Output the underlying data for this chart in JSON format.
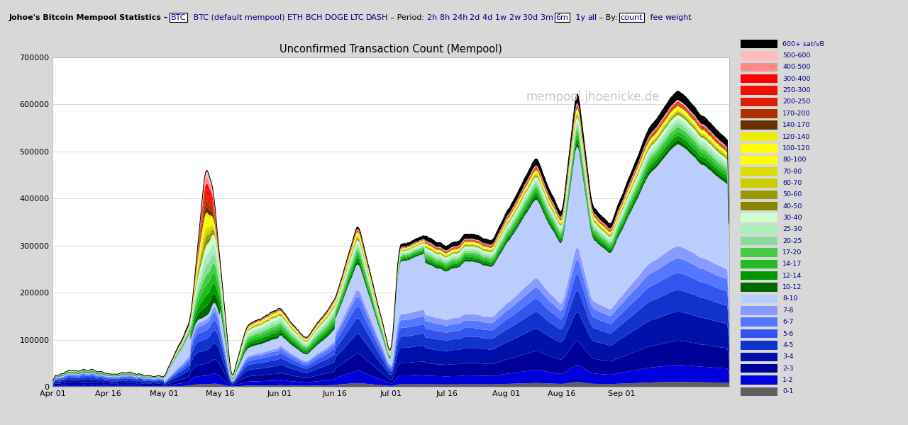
{
  "title": "Unconfirmed Transaction Count (Mempool)",
  "watermark": "mempool.jhoenicke.de",
  "ylim": [
    0,
    700000
  ],
  "yticks": [
    0,
    100000,
    200000,
    300000,
    400000,
    500000,
    600000,
    700000
  ],
  "ytick_labels": [
    "0",
    "100000",
    "200000",
    "300000",
    "400000",
    "500000",
    "600000",
    "700000"
  ],
  "x_tick_positions": [
    0,
    15,
    30,
    45,
    61,
    76,
    91,
    106,
    122,
    137,
    153
  ],
  "x_tick_labels": [
    "Apr 01",
    "Apr 16",
    "May 01",
    "May 16",
    "Jun 01",
    "Jun 16",
    "Jul 01",
    "Jul 16",
    "Aug 01",
    "Aug 16",
    "Sep 01"
  ],
  "fee_ranges": [
    "600+ sat/vB",
    "500-600",
    "400-500",
    "300-400",
    "250-300",
    "200-250",
    "170-200",
    "140-170",
    "120-140",
    "100-120",
    "80-100",
    "70-80",
    "60-70",
    "50-60",
    "40-50",
    "30-40",
    "25-30",
    "20-25",
    "17-20",
    "14-17",
    "12-14",
    "10-12",
    "8-10",
    "7-8",
    "6-7",
    "5-6",
    "4-5",
    "3-4",
    "2-3",
    "1-2",
    "0-1"
  ],
  "fee_colors_legend": [
    "#000000",
    "#ffbbbb",
    "#ff8888",
    "#ff0000",
    "#ee1100",
    "#dd2200",
    "#aa3300",
    "#663300",
    "#eeee00",
    "#ffff00",
    "#ffff00",
    "#dddd00",
    "#cccc00",
    "#999900",
    "#888800",
    "#ccffcc",
    "#aaeebb",
    "#88dd99",
    "#44cc44",
    "#22bb22",
    "#009900",
    "#006600",
    "#bbccff",
    "#8899ff",
    "#5577ff",
    "#3355ee",
    "#1133cc",
    "#0011aa",
    "#000099",
    "#0000dd",
    "#606060"
  ],
  "colors_bottom_to_top": [
    "#606060",
    "#0000dd",
    "#000099",
    "#0011aa",
    "#1133cc",
    "#3355ee",
    "#5577ff",
    "#8899ff",
    "#bbccff",
    "#006600",
    "#009900",
    "#22bb22",
    "#44cc44",
    "#88dd99",
    "#aaeebb",
    "#ccffcc",
    "#888800",
    "#999900",
    "#cccc00",
    "#dddd00",
    "#ffff00",
    "#ffff00",
    "#eeee00",
    "#663300",
    "#aa3300",
    "#dd2200",
    "#ee1100",
    "#ff0000",
    "#ff8888",
    "#ffbbbb",
    "#000000"
  ],
  "header_bg": "#d8d8d8",
  "plot_bg": "#ffffff",
  "n_points": 800
}
